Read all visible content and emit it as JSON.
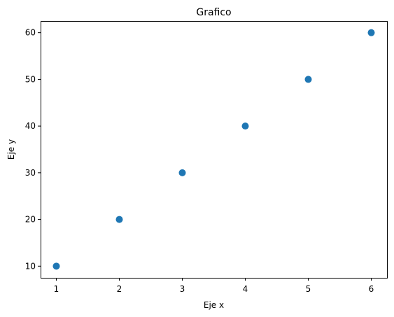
{
  "chart_data": {
    "type": "scatter",
    "title": "Grafico",
    "xlabel": "Eje x",
    "ylabel": "Eje y",
    "x": [
      1,
      2,
      3,
      4,
      5,
      6
    ],
    "y": [
      10,
      20,
      30,
      40,
      50,
      60
    ],
    "xlim": [
      0.75,
      6.25
    ],
    "ylim": [
      7.5,
      62.5
    ],
    "xticks": [
      1,
      2,
      3,
      4,
      5,
      6
    ],
    "yticks": [
      10,
      20,
      30,
      40,
      50,
      60
    ],
    "grid": false,
    "marker_color": "#1f77b4"
  }
}
